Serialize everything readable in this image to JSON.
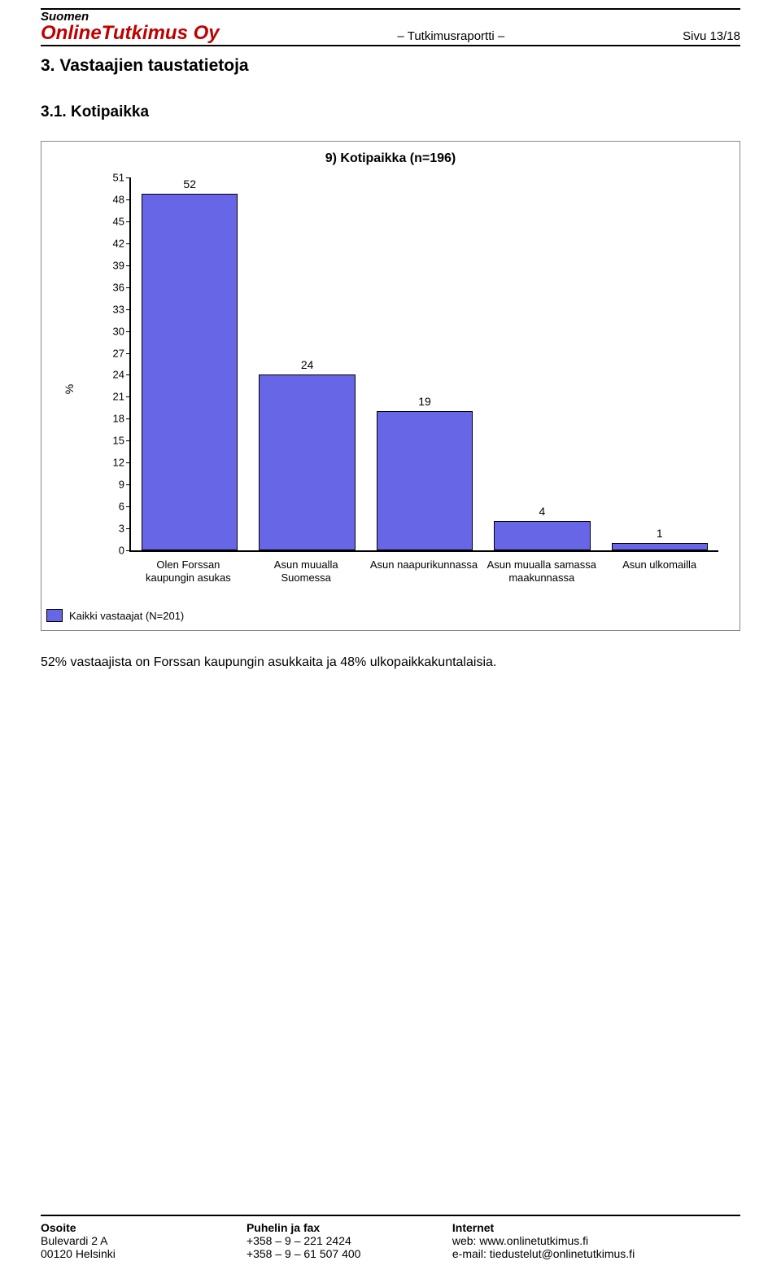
{
  "header": {
    "brand_small": "Suomen",
    "brand_big": "OnlineTutkimus Oy",
    "center": "– Tutkimusraportti –",
    "right": "Sivu 13/18"
  },
  "section_title": "3. Vastaajien taustatietoja",
  "subsection_title": "3.1. Kotipaikka",
  "chart": {
    "type": "bar",
    "title": "9) Kotipaikka (n=196)",
    "title_fontsize": 16,
    "ylabel": "%",
    "label_fontsize": 14,
    "ymax": 51,
    "ytick_step": 3,
    "categories": [
      "Olen Forssan kaupungin asukas",
      "Asun muualla Suomessa",
      "Asun naapurikunnassa",
      "Asun muualla samassa maakunnassa",
      "Asun ulkomailla"
    ],
    "values": [
      52,
      24,
      19,
      4,
      1
    ],
    "bar_color": "#6666e6",
    "bar_border": "#000000",
    "background_color": "#ffffff",
    "axis_color": "#000000",
    "bar_width": 0.82,
    "tick_fontsize": 13,
    "value_fontsize": 14
  },
  "legend_label": "Kaikki vastaajat (N=201)",
  "body_text": "52% vastaajista on Forssan kaupungin asukkaita ja 48% ulkopaikkakuntalaisia.",
  "footer": {
    "col1_head": "Osoite",
    "col1_l1": "Bulevardi 2 A",
    "col1_l2": "00120 Helsinki",
    "col2_head": "Puhelin ja fax",
    "col2_l1": "+358 – 9 – 221 2424",
    "col2_l2": "+358 – 9 – 61 507 400",
    "col3_head": "Internet",
    "col3_l1": "web: www.onlinetutkimus.fi",
    "col3_l2": "e-mail: tiedustelut@onlinetutkimus.fi"
  }
}
